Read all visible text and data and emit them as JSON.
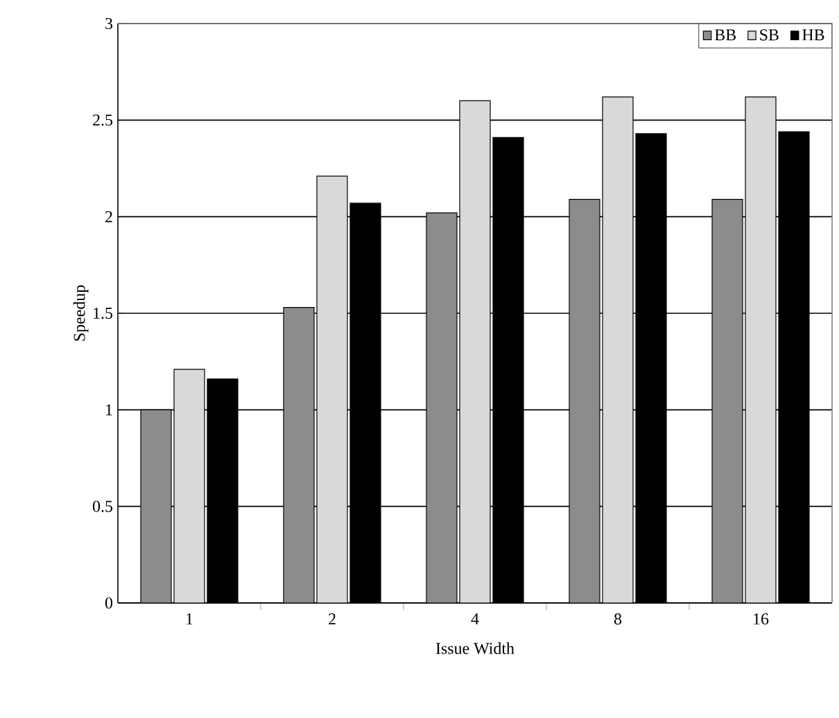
{
  "chart_data": {
    "type": "bar",
    "xlabel": "Issue Width",
    "ylabel": "Speedup",
    "categories": [
      "1",
      "2",
      "4",
      "8",
      "16"
    ],
    "series": [
      {
        "name": "BB",
        "color": "#8c8c8c",
        "values": [
          1.0,
          1.53,
          2.02,
          2.09,
          2.09
        ]
      },
      {
        "name": "SB",
        "color": "#d9d9d9",
        "values": [
          1.21,
          2.21,
          2.6,
          2.62,
          2.62
        ]
      },
      {
        "name": "HB",
        "color": "#000000",
        "values": [
          1.16,
          2.07,
          2.41,
          2.43,
          2.44
        ]
      }
    ],
    "ylim": [
      0,
      3
    ],
    "yticks": [
      0,
      0.5,
      1,
      1.5,
      2,
      2.5,
      3
    ],
    "grid": "y",
    "legend": "top right"
  }
}
